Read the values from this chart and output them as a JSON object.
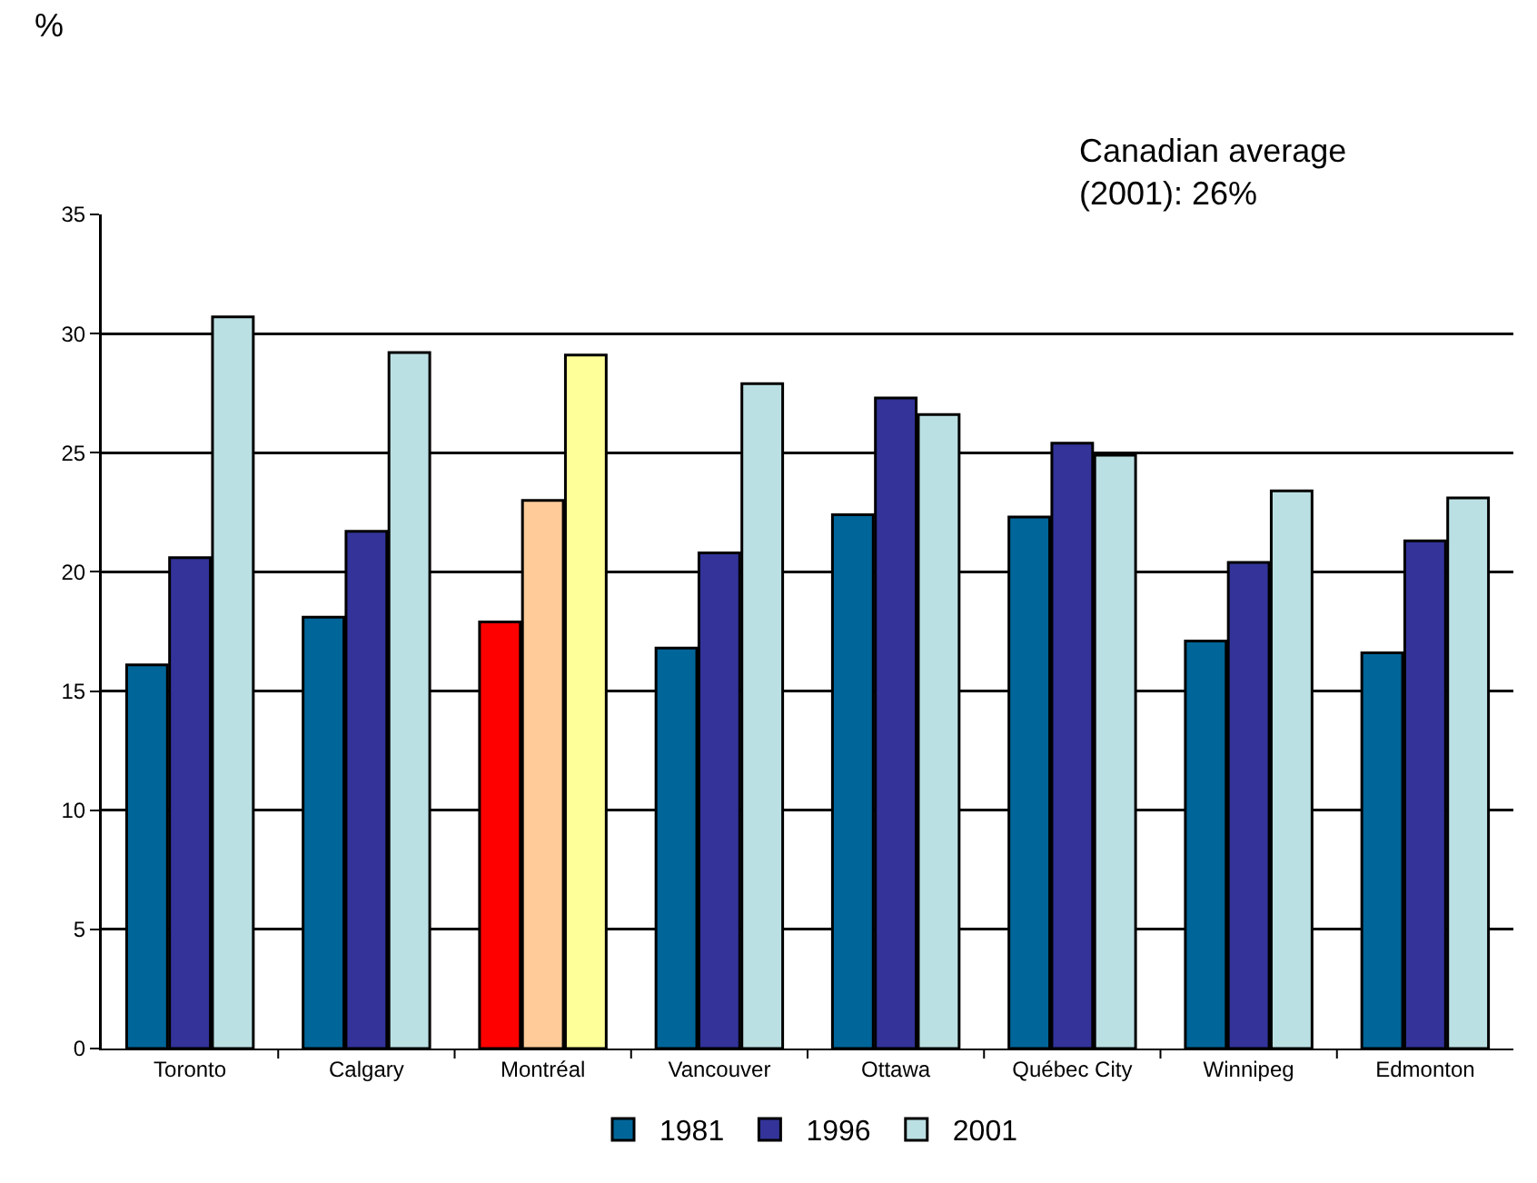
{
  "chart_data": {
    "type": "bar",
    "ylabel": "%",
    "annotations": [
      "Canadian average\n(2001): 26%"
    ],
    "categories": [
      "Toronto",
      "Calgary",
      "Montréal",
      "Vancouver",
      "Ottawa",
      "Québec City",
      "Winnipeg",
      "Edmonton"
    ],
    "series": [
      {
        "name": "1981",
        "color": "#006699",
        "colors": [
          "#006699",
          "#006699",
          "#ff0000",
          "#006699",
          "#006699",
          "#006699",
          "#006699",
          "#006699"
        ],
        "values": [
          16.1,
          18.1,
          17.9,
          16.8,
          22.4,
          22.3,
          17.1,
          16.6
        ]
      },
      {
        "name": "1996",
        "color": "#333399",
        "colors": [
          "#333399",
          "#333399",
          "#ffcc99",
          "#333399",
          "#333399",
          "#333399",
          "#333399",
          "#333399"
        ],
        "values": [
          20.6,
          21.7,
          23.0,
          20.8,
          27.3,
          25.4,
          20.4,
          21.3
        ]
      },
      {
        "name": "2001",
        "color": "#bbe0e3",
        "colors": [
          "#bbe0e3",
          "#bbe0e3",
          "#ffff99",
          "#bbe0e3",
          "#bbe0e3",
          "#bbe0e3",
          "#bbe0e3",
          "#bbe0e3"
        ],
        "values": [
          30.7,
          29.2,
          29.1,
          27.9,
          26.6,
          24.9,
          23.4,
          23.1
        ]
      }
    ],
    "ylim": [
      0,
      35
    ],
    "yticks": [
      0,
      5,
      10,
      15,
      20,
      25,
      30,
      35
    ],
    "grid": "y",
    "legend": "bottom"
  }
}
